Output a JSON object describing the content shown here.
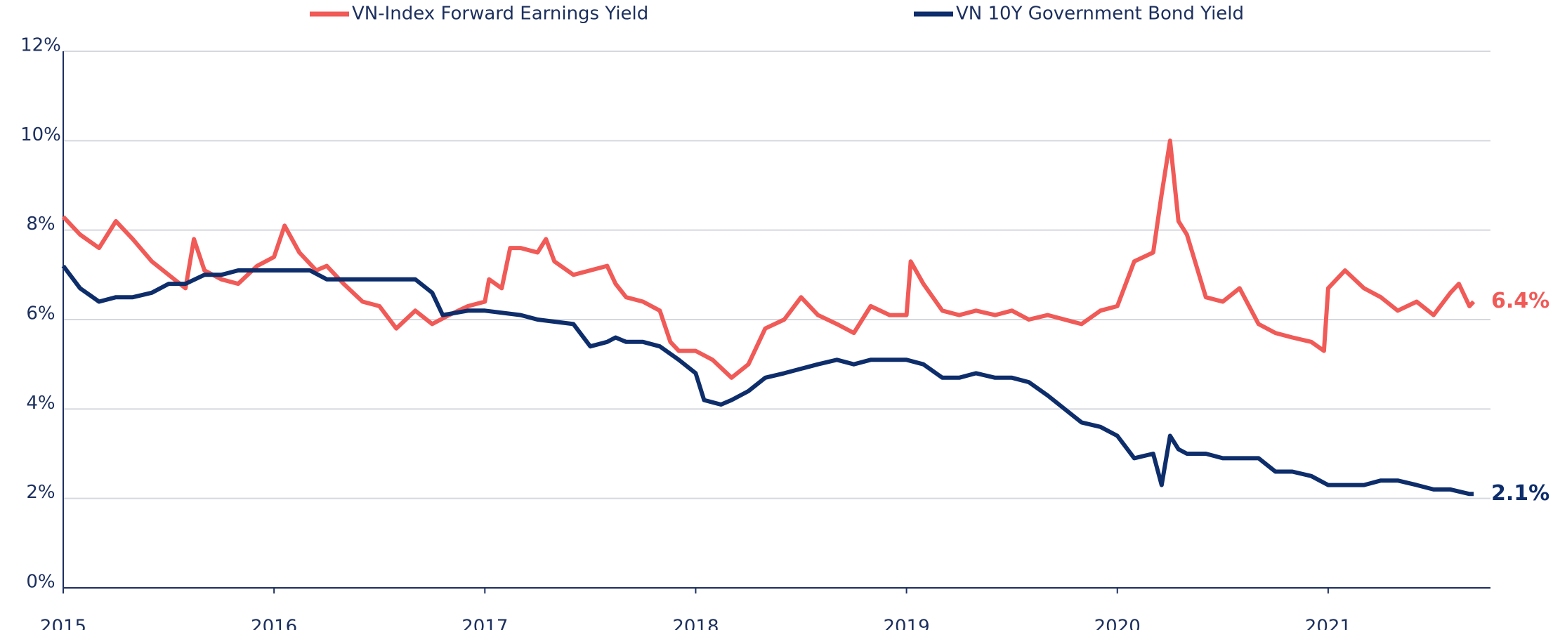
{
  "chart_data": {
    "type": "line",
    "xlim": [
      2015,
      2021.77
    ],
    "xticks": [
      2015,
      2016,
      2017,
      2018,
      2019,
      2020,
      2021
    ],
    "ylim": [
      0,
      12
    ],
    "yticks": [
      {
        "value": 0,
        "label": "0%"
      },
      {
        "value": 2,
        "label": "2%"
      },
      {
        "value": 4,
        "label": "4%"
      },
      {
        "value": 6,
        "label": "6%"
      },
      {
        "value": 8,
        "label": "8%"
      },
      {
        "value": 10,
        "label": "10%"
      },
      {
        "value": 12,
        "label": "12%"
      }
    ],
    "grid": true,
    "legend": "top",
    "series": [
      {
        "name": "VN-Index Forward Earnings Yield",
        "color": "#f05a57",
        "end_label": "6.4%",
        "x": [
          2015.0,
          2015.08,
          2015.17,
          2015.25,
          2015.33,
          2015.42,
          2015.5,
          2015.58,
          2015.62,
          2015.67,
          2015.75,
          2015.83,
          2015.92,
          2016.0,
          2016.05,
          2016.12,
          2016.2,
          2016.25,
          2016.33,
          2016.42,
          2016.5,
          2016.58,
          2016.67,
          2016.75,
          2016.83,
          2016.92,
          2017.0,
          2017.02,
          2017.08,
          2017.12,
          2017.17,
          2017.25,
          2017.29,
          2017.33,
          2017.42,
          2017.5,
          2017.58,
          2017.62,
          2017.67,
          2017.75,
          2017.83,
          2017.88,
          2017.92,
          2018.0,
          2018.08,
          2018.17,
          2018.25,
          2018.33,
          2018.42,
          2018.5,
          2018.58,
          2018.67,
          2018.75,
          2018.83,
          2018.92,
          2019.0,
          2019.02,
          2019.08,
          2019.17,
          2019.25,
          2019.33,
          2019.42,
          2019.5,
          2019.58,
          2019.67,
          2019.75,
          2019.83,
          2019.92,
          2020.0,
          2020.08,
          2020.17,
          2020.21,
          2020.25,
          2020.29,
          2020.33,
          2020.42,
          2020.5,
          2020.58,
          2020.67,
          2020.75,
          2020.83,
          2020.92,
          2020.98,
          2021.0,
          2021.08,
          2021.17,
          2021.25,
          2021.33,
          2021.42,
          2021.5,
          2021.58,
          2021.62,
          2021.67,
          2021.69
        ],
        "values": [
          8.3,
          7.9,
          7.6,
          8.2,
          7.8,
          7.3,
          7.0,
          6.7,
          7.8,
          7.1,
          6.9,
          6.8,
          7.2,
          7.4,
          8.1,
          7.5,
          7.1,
          7.2,
          6.8,
          6.4,
          6.3,
          5.8,
          6.2,
          5.9,
          6.1,
          6.3,
          6.4,
          6.9,
          6.7,
          7.6,
          7.6,
          7.5,
          7.8,
          7.3,
          7.0,
          7.1,
          7.2,
          6.8,
          6.5,
          6.4,
          6.2,
          5.5,
          5.3,
          5.3,
          5.1,
          4.7,
          5.0,
          5.8,
          6.0,
          6.5,
          6.1,
          5.9,
          5.7,
          6.3,
          6.1,
          6.1,
          7.3,
          6.8,
          6.2,
          6.1,
          6.2,
          6.1,
          6.2,
          6.0,
          6.1,
          6.0,
          5.9,
          6.2,
          6.3,
          7.3,
          7.5,
          8.8,
          10.0,
          8.2,
          7.9,
          6.5,
          6.4,
          6.7,
          5.9,
          5.7,
          5.6,
          5.5,
          5.3,
          6.7,
          7.1,
          6.7,
          6.5,
          6.2,
          6.4,
          6.1,
          6.6,
          6.8,
          6.3,
          6.4
        ]
      },
      {
        "name": "VN 10Y Government Bond Yield",
        "color": "#0d2d6b",
        "end_label": "2.1%",
        "x": [
          2015.0,
          2015.08,
          2015.17,
          2015.25,
          2015.33,
          2015.42,
          2015.5,
          2015.58,
          2015.67,
          2015.75,
          2015.83,
          2015.92,
          2016.0,
          2016.17,
          2016.25,
          2016.42,
          2016.5,
          2016.67,
          2016.75,
          2016.8,
          2016.92,
          2017.0,
          2017.17,
          2017.25,
          2017.42,
          2017.5,
          2017.58,
          2017.62,
          2017.67,
          2017.75,
          2017.83,
          2017.92,
          2018.0,
          2018.04,
          2018.12,
          2018.17,
          2018.25,
          2018.33,
          2018.42,
          2018.5,
          2018.58,
          2018.67,
          2018.75,
          2018.83,
          2019.0,
          2019.08,
          2019.17,
          2019.25,
          2019.33,
          2019.42,
          2019.5,
          2019.58,
          2019.67,
          2019.75,
          2019.83,
          2019.92,
          2020.0,
          2020.08,
          2020.17,
          2020.21,
          2020.25,
          2020.29,
          2020.33,
          2020.42,
          2020.5,
          2020.58,
          2020.67,
          2020.75,
          2020.83,
          2020.92,
          2021.0,
          2021.08,
          2021.17,
          2021.25,
          2021.33,
          2021.42,
          2021.5,
          2021.58,
          2021.67,
          2021.69
        ],
        "values": [
          7.2,
          6.7,
          6.4,
          6.5,
          6.5,
          6.6,
          6.8,
          6.8,
          7.0,
          7.0,
          7.1,
          7.1,
          7.1,
          7.1,
          6.9,
          6.9,
          6.9,
          6.9,
          6.6,
          6.1,
          6.2,
          6.2,
          6.1,
          6.0,
          5.9,
          5.4,
          5.5,
          5.6,
          5.5,
          5.5,
          5.4,
          5.1,
          4.8,
          4.2,
          4.1,
          4.2,
          4.4,
          4.7,
          4.8,
          4.9,
          5.0,
          5.1,
          5.0,
          5.1,
          5.1,
          5.0,
          4.7,
          4.7,
          4.8,
          4.7,
          4.7,
          4.6,
          4.3,
          4.0,
          3.7,
          3.6,
          3.4,
          2.9,
          3.0,
          2.3,
          3.4,
          3.1,
          3.0,
          3.0,
          2.9,
          2.9,
          2.9,
          2.6,
          2.6,
          2.5,
          2.3,
          2.3,
          2.3,
          2.4,
          2.4,
          2.3,
          2.2,
          2.2,
          2.1,
          2.1
        ]
      }
    ]
  }
}
